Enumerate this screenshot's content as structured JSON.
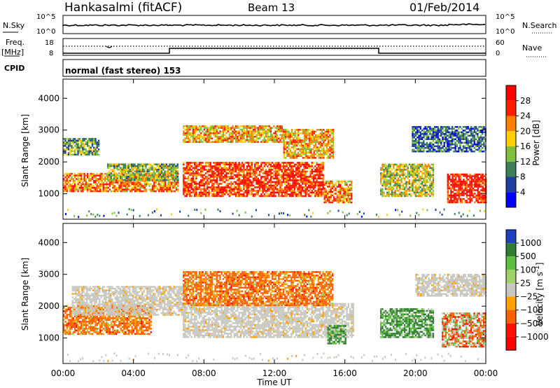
{
  "header": {
    "station": "Hankasalmi (fitACF)",
    "beam": "Beam 13",
    "date": "01/Feb/2014"
  },
  "top_panels": {
    "nsky_label": "N.Sky",
    "nsky_ticks": [
      "10^5",
      "10^0"
    ],
    "nsearch_label": "N.Search",
    "nsearch_ticks": [
      "10^5",
      "10^0"
    ],
    "freq_label": "Freq.",
    "freq_unit": "[MHz]",
    "freq_ticks": [
      "18",
      "8"
    ],
    "nave_label": "Nave",
    "nave_ticks": [
      "60",
      "0"
    ],
    "cpid_label": "CPID",
    "cpid_text": "normal (fast stereo) 153"
  },
  "chart_data": [
    {
      "type": "heatmap",
      "name": "power",
      "xlabel": "",
      "ylabel": "Slant Range [km]",
      "x_ticks": [
        "00:00",
        "04:00",
        "08:00",
        "12:00",
        "16:00",
        "20:00",
        "00:00"
      ],
      "xlim_hours": [
        0,
        24
      ],
      "ylim": [
        200,
        4600
      ],
      "y_ticks": [
        1000,
        2000,
        3000,
        4000
      ],
      "colorbar": {
        "label": "Power [dB]",
        "ticks": [
          4,
          8,
          12,
          16,
          20,
          24,
          28
        ],
        "range": [
          0,
          32
        ],
        "colors": [
          "#0000ff",
          "#1f3f9f",
          "#3d7f57",
          "#7fbf3f",
          "#ffcf00",
          "#ff8000",
          "#ff2000",
          "#ff0000"
        ]
      },
      "regions": [
        {
          "t0": 0.0,
          "t1": 6.5,
          "r0": 1050,
          "r1": 1650,
          "level": 22
        },
        {
          "t0": 0.0,
          "t1": 2.0,
          "r0": 2200,
          "r1": 2750,
          "level": 12
        },
        {
          "t0": 2.5,
          "t1": 6.5,
          "r0": 1400,
          "r1": 1900,
          "level": 14
        },
        {
          "t0": 6.8,
          "t1": 12.5,
          "r0": 2600,
          "r1": 3100,
          "level": 20
        },
        {
          "t0": 12.5,
          "t1": 15.3,
          "r0": 2100,
          "r1": 3000,
          "level": 20
        },
        {
          "t0": 6.8,
          "t1": 14.8,
          "r0": 900,
          "r1": 1950,
          "level": 26
        },
        {
          "t0": 14.8,
          "t1": 16.4,
          "r0": 700,
          "r1": 1400,
          "level": 22
        },
        {
          "t0": 18.0,
          "t1": 21.0,
          "r0": 900,
          "r1": 1900,
          "level": 16
        },
        {
          "t0": 21.8,
          "t1": 24.0,
          "r0": 700,
          "r1": 1600,
          "level": 28
        },
        {
          "t0": 19.8,
          "t1": 24.0,
          "r0": 2300,
          "r1": 3100,
          "level": 8
        }
      ]
    },
    {
      "type": "heatmap",
      "name": "velocity",
      "xlabel": "Time UT",
      "ylabel": "Slant Range [km]",
      "x_ticks": [
        "00:00",
        "04:00",
        "08:00",
        "12:00",
        "16:00",
        "20:00",
        "00:00"
      ],
      "xlim_hours": [
        0,
        24
      ],
      "ylim": [
        200,
        4600
      ],
      "y_ticks": [
        1000,
        2000,
        3000,
        4000
      ],
      "colorbar": {
        "label": "Velocity [m s^-1]",
        "ticks": [
          "1000",
          "500",
          "100",
          "25",
          "−25",
          "−100",
          "−500",
          "−1000"
        ],
        "colors": [
          "#1f3fbf",
          "#2e7d32",
          "#5fbf3f",
          "#9ed36a",
          "#c8c8c0",
          "#ffa000",
          "#ff6000",
          "#ff1000",
          "#ff0000"
        ]
      },
      "regions": [
        {
          "t0": 0.0,
          "t1": 5.0,
          "r0": 1100,
          "r1": 2000,
          "class": "neg"
        },
        {
          "t0": 0.5,
          "t1": 7.0,
          "r0": 1700,
          "r1": 2600,
          "class": "zero"
        },
        {
          "t0": 6.8,
          "t1": 16.5,
          "r0": 1000,
          "r1": 2100,
          "class": "zero"
        },
        {
          "t0": 6.8,
          "t1": 15.3,
          "r0": 2000,
          "r1": 3100,
          "class": "neg"
        },
        {
          "t0": 15.0,
          "t1": 16.0,
          "r0": 800,
          "r1": 1400,
          "class": "pos"
        },
        {
          "t0": 18.0,
          "t1": 21.0,
          "r0": 1000,
          "r1": 1900,
          "class": "pos"
        },
        {
          "t0": 20.0,
          "t1": 24.0,
          "r0": 2300,
          "r1": 3000,
          "class": "zero"
        },
        {
          "t0": 21.5,
          "t1": 24.0,
          "r0": 700,
          "r1": 1800,
          "class": "mix"
        }
      ]
    }
  ]
}
